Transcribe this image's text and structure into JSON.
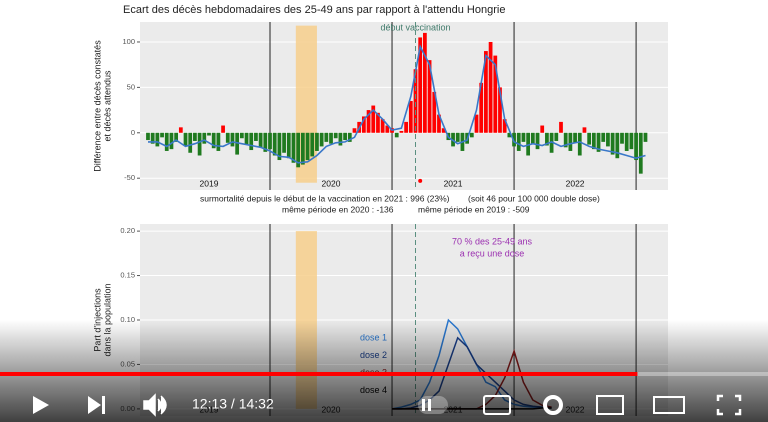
{
  "player": {
    "time": "12:13 / 14:32",
    "progress": 83
  },
  "chart_data": [
    {
      "type": "bar",
      "title": "Ecart des décès hebdomadaires des 25-49 ans par rapport à l'attendu Hongrie",
      "ylabel": [
        "Différence entre décès constatés",
        "et décès attendus"
      ],
      "xlim": [
        -3.4,
        221.6
      ],
      "ylim": [
        -63,
        122
      ],
      "yticks": [
        -50,
        0,
        50,
        100
      ],
      "grid": true,
      "xticks": [
        {
          "value": 26,
          "label": "2019"
        },
        {
          "value": 78,
          "label": "2020"
        },
        {
          "value": 130,
          "label": "2021"
        },
        {
          "value": 182,
          "label": "2022"
        }
      ],
      "vlines": [
        52,
        104,
        156,
        208
      ],
      "vaccination": {
        "x": 114,
        "label": "début vaccination"
      },
      "band": {
        "x": [
          63,
          72
        ],
        "y": [
          -55,
          118
        ],
        "color": "#f7cf8c"
      },
      "marker": {
        "x": 116,
        "y": -53,
        "color": "#ff0000"
      },
      "colors": {
        "positive": "#ff0000",
        "negative": "#1f7a1f"
      },
      "x": [
        0,
        2,
        4,
        6,
        8,
        10,
        12,
        14,
        16,
        18,
        20,
        22,
        24,
        26,
        28,
        30,
        32,
        34,
        36,
        38,
        40,
        42,
        44,
        46,
        48,
        50,
        52,
        54,
        56,
        58,
        60,
        62,
        64,
        66,
        68,
        70,
        72,
        74,
        76,
        78,
        80,
        82,
        84,
        86,
        88,
        90,
        92,
        94,
        96,
        98,
        100,
        102,
        104,
        106,
        108,
        110,
        112,
        114,
        116,
        118,
        120,
        122,
        124,
        126,
        128,
        130,
        132,
        134,
        136,
        138,
        140,
        142,
        144,
        146,
        148,
        150,
        152,
        154,
        156,
        158,
        160,
        162,
        164,
        166,
        168,
        170,
        172,
        174,
        176,
        178,
        180,
        182,
        184,
        186,
        188,
        190,
        192,
        194,
        196,
        198,
        200,
        202,
        204,
        206,
        208,
        210,
        212
      ],
      "values": [
        -8,
        -12,
        -15,
        -5,
        -20,
        -18,
        -10,
        6,
        -14,
        -22,
        -9,
        -25,
        -12,
        -3,
        -17,
        -20,
        8,
        -11,
        -15,
        -24,
        -6,
        -13,
        -19,
        -9,
        -16,
        -21,
        -18,
        -25,
        -30,
        -22,
        -28,
        -33,
        -38,
        -35,
        -30,
        -26,
        -20,
        -15,
        -10,
        -12,
        -6,
        -14,
        -8,
        -10,
        5,
        12,
        18,
        25,
        30,
        22,
        15,
        8,
        5,
        -5,
        2,
        12,
        35,
        70,
        105,
        110,
        80,
        45,
        20,
        5,
        -8,
        -15,
        -10,
        -20,
        -12,
        -5,
        20,
        55,
        90,
        100,
        85,
        50,
        15,
        -5,
        -15,
        -20,
        -10,
        -25,
        -12,
        -18,
        8,
        -14,
        -22,
        -9,
        12,
        -16,
        -20,
        -11,
        -25,
        6,
        -13,
        -18,
        -21,
        -10,
        -15,
        -24,
        -28,
        -12,
        -20,
        -18,
        -30,
        -45,
        -10
      ],
      "trend": {
        "color": "#3a78c9",
        "x": [
          0,
          4,
          8,
          12,
          16,
          20,
          24,
          28,
          32,
          36,
          40,
          44,
          48,
          52,
          56,
          60,
          64,
          68,
          72,
          76,
          80,
          84,
          88,
          92,
          96,
          100,
          104,
          108,
          112,
          116,
          120,
          124,
          128,
          132,
          136,
          140,
          144,
          148,
          152,
          156,
          160,
          164,
          168,
          172,
          176,
          180,
          184,
          188,
          192,
          196,
          200,
          204,
          208,
          212
        ],
        "values": [
          -10,
          -10,
          -15,
          -8,
          -15,
          -12,
          -8,
          -14,
          -15,
          -10,
          -12,
          -14,
          -16,
          -20,
          -26,
          -27,
          -33,
          -32,
          -25,
          -15,
          -11,
          -10,
          -5,
          15,
          25,
          15,
          3,
          5,
          40,
          95,
          75,
          20,
          -5,
          -12,
          -8,
          25,
          85,
          75,
          15,
          -10,
          -15,
          -12,
          -14,
          -10,
          -15,
          -12,
          -10,
          -15,
          -18,
          -20,
          -22,
          -25,
          -28,
          -25
        ]
      },
      "notes": [
        "surmortalité depuis le début de la vaccination en 2021 : 996  (23%)",
        "(soit 46 pour 100 000 double dose)",
        "même période en 2020 : -136",
        "même période en 2019 : -509"
      ]
    },
    {
      "type": "line",
      "ylabel": [
        "Part d'injections",
        "dans la population"
      ],
      "xlim": [
        -3.4,
        221.6
      ],
      "ylim": [
        -0.008,
        0.208
      ],
      "grid": true,
      "yticks": [
        {
          "value": 0,
          "label": "0.00"
        },
        {
          "value": 0.05,
          "label": "0.05"
        },
        {
          "value": 0.1,
          "label": "0.10"
        },
        {
          "value": 0.15,
          "label": "0.15"
        },
        {
          "value": 0.2,
          "label": "0.20"
        }
      ],
      "xticks": [
        {
          "value": 26,
          "label": "2019"
        },
        {
          "value": 78,
          "label": "2020"
        },
        {
          "value": 130,
          "label": "2021"
        },
        {
          "value": 182,
          "label": "2022"
        }
      ],
      "vlines": [
        52,
        104,
        156,
        208
      ],
      "vaccination_x": 114,
      "band": {
        "x": [
          63,
          72
        ],
        "y": [
          0,
          0.2
        ],
        "color": "#f7cf8c"
      },
      "annotation": [
        "70 % des 25-49 ans",
        "a reçu une dose"
      ],
      "x": [
        104,
        108,
        112,
        116,
        120,
        124,
        128,
        132,
        136,
        140,
        144,
        148,
        152,
        156,
        160,
        164,
        168,
        172
      ],
      "series": [
        {
          "name": "dose 1",
          "color": "#2a78d0",
          "values": [
            0,
            0.002,
            0.005,
            0.01,
            0.03,
            0.06,
            0.1,
            0.09,
            0.07,
            0.05,
            0.03,
            0.025,
            0.01,
            0.005,
            0.003,
            0.002,
            0.002,
            0.001
          ]
        },
        {
          "name": "dose 2",
          "color": "#1a3f8a",
          "values": [
            0,
            0,
            0.001,
            0.004,
            0.01,
            0.02,
            0.05,
            0.08,
            0.07,
            0.05,
            0.04,
            0.03,
            0.02,
            0.01,
            0.005,
            0.003,
            0.002,
            0.001
          ]
        },
        {
          "name": "dose 3",
          "color": "#8b1a1a",
          "values": [
            0,
            0,
            0,
            0,
            0,
            0,
            0,
            0,
            0,
            0,
            0.005,
            0.015,
            0.035,
            0.065,
            0.03,
            0.01,
            0.004,
            0.002
          ]
        },
        {
          "name": "dose 4",
          "color": "#000000",
          "values": [
            0,
            0,
            0,
            0,
            0,
            0,
            0,
            0,
            0,
            0,
            0,
            0,
            0,
            0,
            0,
            0,
            0.001,
            0.001
          ]
        }
      ]
    }
  ]
}
